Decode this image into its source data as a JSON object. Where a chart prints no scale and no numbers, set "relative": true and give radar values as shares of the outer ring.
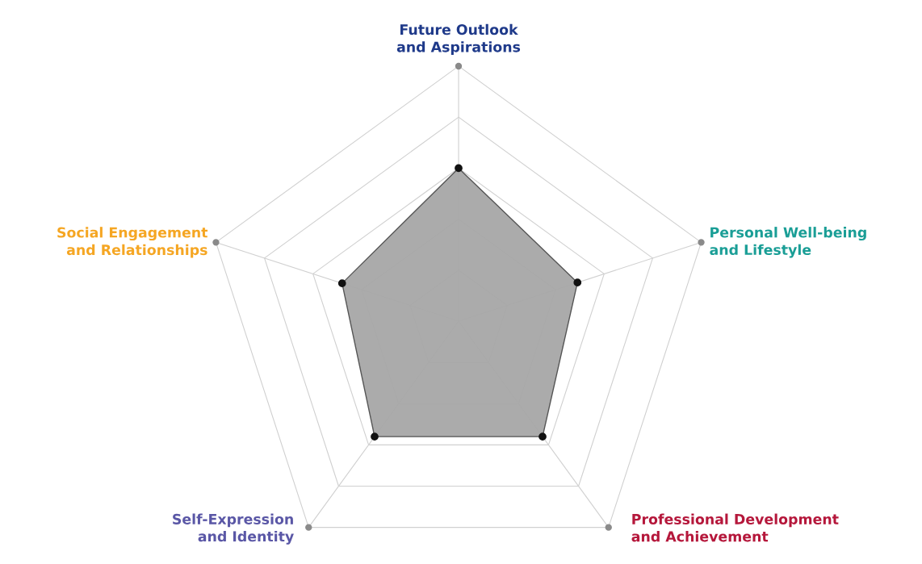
{
  "chart_data": {
    "type": "radar",
    "relative": true,
    "categories": [
      "Future Outlook\nand Aspirations",
      "Personal Well-being\nand Lifestyle",
      "Professional Development\nand Achievement",
      "Self-Expression\nand Identity",
      "Social Engagement\nand Relationships"
    ],
    "colors": [
      "#1f3a8a",
      "#1a9e96",
      "#b5173b",
      "#5a57a6",
      "#f5a623"
    ],
    "series": [
      {
        "color": "#a6a6a6",
        "values": [
          0.6,
          0.49,
          0.56,
          0.56,
          0.48
        ]
      }
    ],
    "marker": "circle",
    "grid": true
  }
}
